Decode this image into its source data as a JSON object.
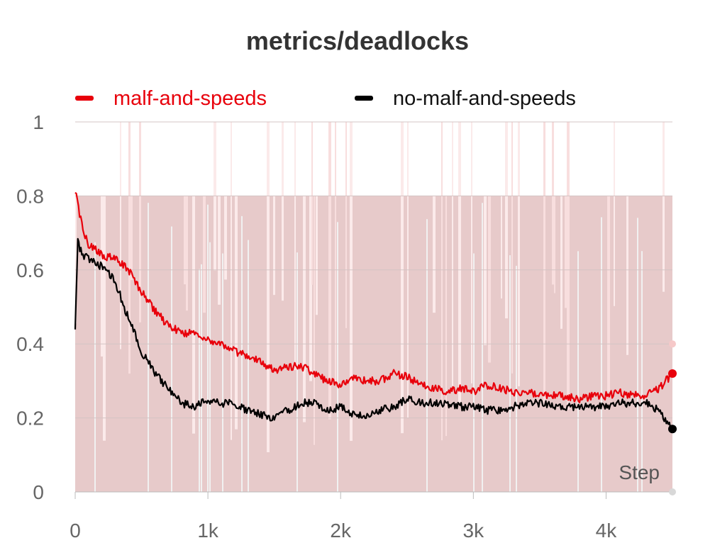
{
  "chart_data": {
    "type": "line",
    "title": "metrics/deadlocks",
    "xlabel": "Step",
    "ylabel": "",
    "xlim": [
      0,
      4500
    ],
    "ylim": [
      0,
      1
    ],
    "x_ticks": [
      0,
      1000,
      2000,
      3000,
      4000
    ],
    "x_tick_labels": [
      "0",
      "1k",
      "2k",
      "3k",
      "4k"
    ],
    "y_ticks": [
      0,
      0.2,
      0.4,
      0.6,
      0.8,
      1
    ],
    "y_tick_labels": [
      "0",
      "0.2",
      "0.4",
      "0.6",
      "0.8",
      "1"
    ],
    "grid": true,
    "legend_position": "top",
    "raw_values_shown_faint": true,
    "series": [
      {
        "name": "malf-and-speeds",
        "color": "#e8000b",
        "x": [
          0,
          50,
          100,
          200,
          300,
          400,
          500,
          600,
          700,
          800,
          900,
          1000,
          1100,
          1200,
          1300,
          1400,
          1500,
          1600,
          1700,
          1800,
          1900,
          2000,
          2100,
          2200,
          2300,
          2400,
          2500,
          2600,
          2700,
          2800,
          2900,
          3000,
          3100,
          3200,
          3300,
          3400,
          3500,
          3600,
          3700,
          3800,
          3900,
          4000,
          4100,
          4200,
          4300,
          4400,
          4500
        ],
        "values": [
          0.82,
          0.72,
          0.67,
          0.64,
          0.63,
          0.6,
          0.54,
          0.49,
          0.45,
          0.43,
          0.43,
          0.41,
          0.4,
          0.38,
          0.37,
          0.35,
          0.33,
          0.34,
          0.34,
          0.32,
          0.3,
          0.29,
          0.31,
          0.3,
          0.3,
          0.32,
          0.31,
          0.29,
          0.28,
          0.27,
          0.28,
          0.27,
          0.29,
          0.28,
          0.27,
          0.27,
          0.26,
          0.26,
          0.26,
          0.25,
          0.26,
          0.26,
          0.27,
          0.26,
          0.26,
          0.28,
          0.32
        ]
      },
      {
        "name": "no-malf-and-speeds",
        "color": "#000000",
        "x": [
          0,
          20,
          50,
          100,
          200,
          300,
          400,
          500,
          600,
          700,
          800,
          900,
          1000,
          1100,
          1200,
          1300,
          1400,
          1500,
          1600,
          1700,
          1800,
          1900,
          2000,
          2100,
          2200,
          2300,
          2400,
          2500,
          2600,
          2700,
          2800,
          2900,
          3000,
          3100,
          3200,
          3300,
          3400,
          3500,
          3600,
          3700,
          3800,
          3900,
          4000,
          4100,
          4200,
          4300,
          4400,
          4500
        ],
        "values": [
          0.45,
          0.68,
          0.64,
          0.63,
          0.61,
          0.57,
          0.47,
          0.38,
          0.32,
          0.28,
          0.24,
          0.23,
          0.25,
          0.24,
          0.24,
          0.22,
          0.21,
          0.2,
          0.22,
          0.24,
          0.24,
          0.22,
          0.23,
          0.21,
          0.21,
          0.22,
          0.23,
          0.25,
          0.24,
          0.24,
          0.24,
          0.23,
          0.23,
          0.22,
          0.22,
          0.23,
          0.24,
          0.24,
          0.23,
          0.23,
          0.23,
          0.23,
          0.23,
          0.24,
          0.24,
          0.24,
          0.22,
          0.17
        ]
      }
    ]
  }
}
